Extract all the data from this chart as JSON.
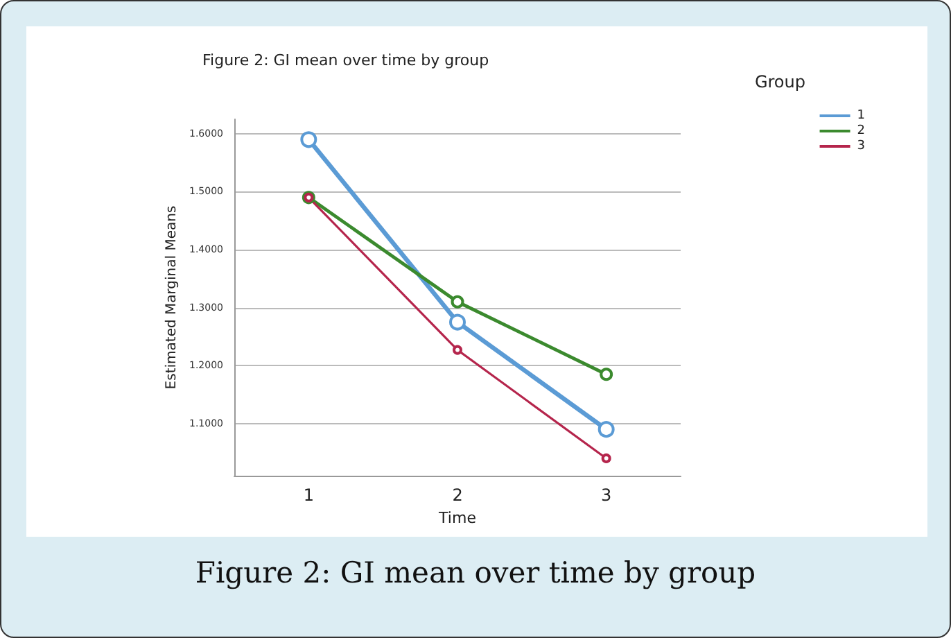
{
  "chart_data": {
    "type": "line",
    "title": "Figure 2: GI mean over time by group",
    "xlabel": "Time",
    "ylabel": "Estimated Marginal Means",
    "legend_title": "Group",
    "annotations": [
      "Figure 2: GI mean over time by group"
    ],
    "categories": [
      "1",
      "2",
      "3"
    ],
    "series": [
      {
        "name": "1",
        "color": "#5b9bd5",
        "values": [
          1.59,
          1.275,
          1.09
        ]
      },
      {
        "name": "2",
        "color": "#3b8a2e",
        "values": [
          1.49,
          1.31,
          1.185
        ]
      },
      {
        "name": "3",
        "color": "#b5254c",
        "values": [
          1.49,
          1.227,
          1.04
        ]
      }
    ],
    "ylim": [
      1.01,
      1.625
    ],
    "yticks": [
      {
        "value": 1.1,
        "label": "1.1000"
      },
      {
        "value": 1.2,
        "label": "1.2000"
      },
      {
        "value": 1.3,
        "label": "1.3000"
      },
      {
        "value": 1.4,
        "label": "1.4000"
      },
      {
        "value": 1.5,
        "label": "1.5000"
      },
      {
        "value": 1.6,
        "label": "1.6000"
      }
    ],
    "grid": "y",
    "legend": "top right",
    "marker": "circle",
    "line_style": "solid"
  }
}
